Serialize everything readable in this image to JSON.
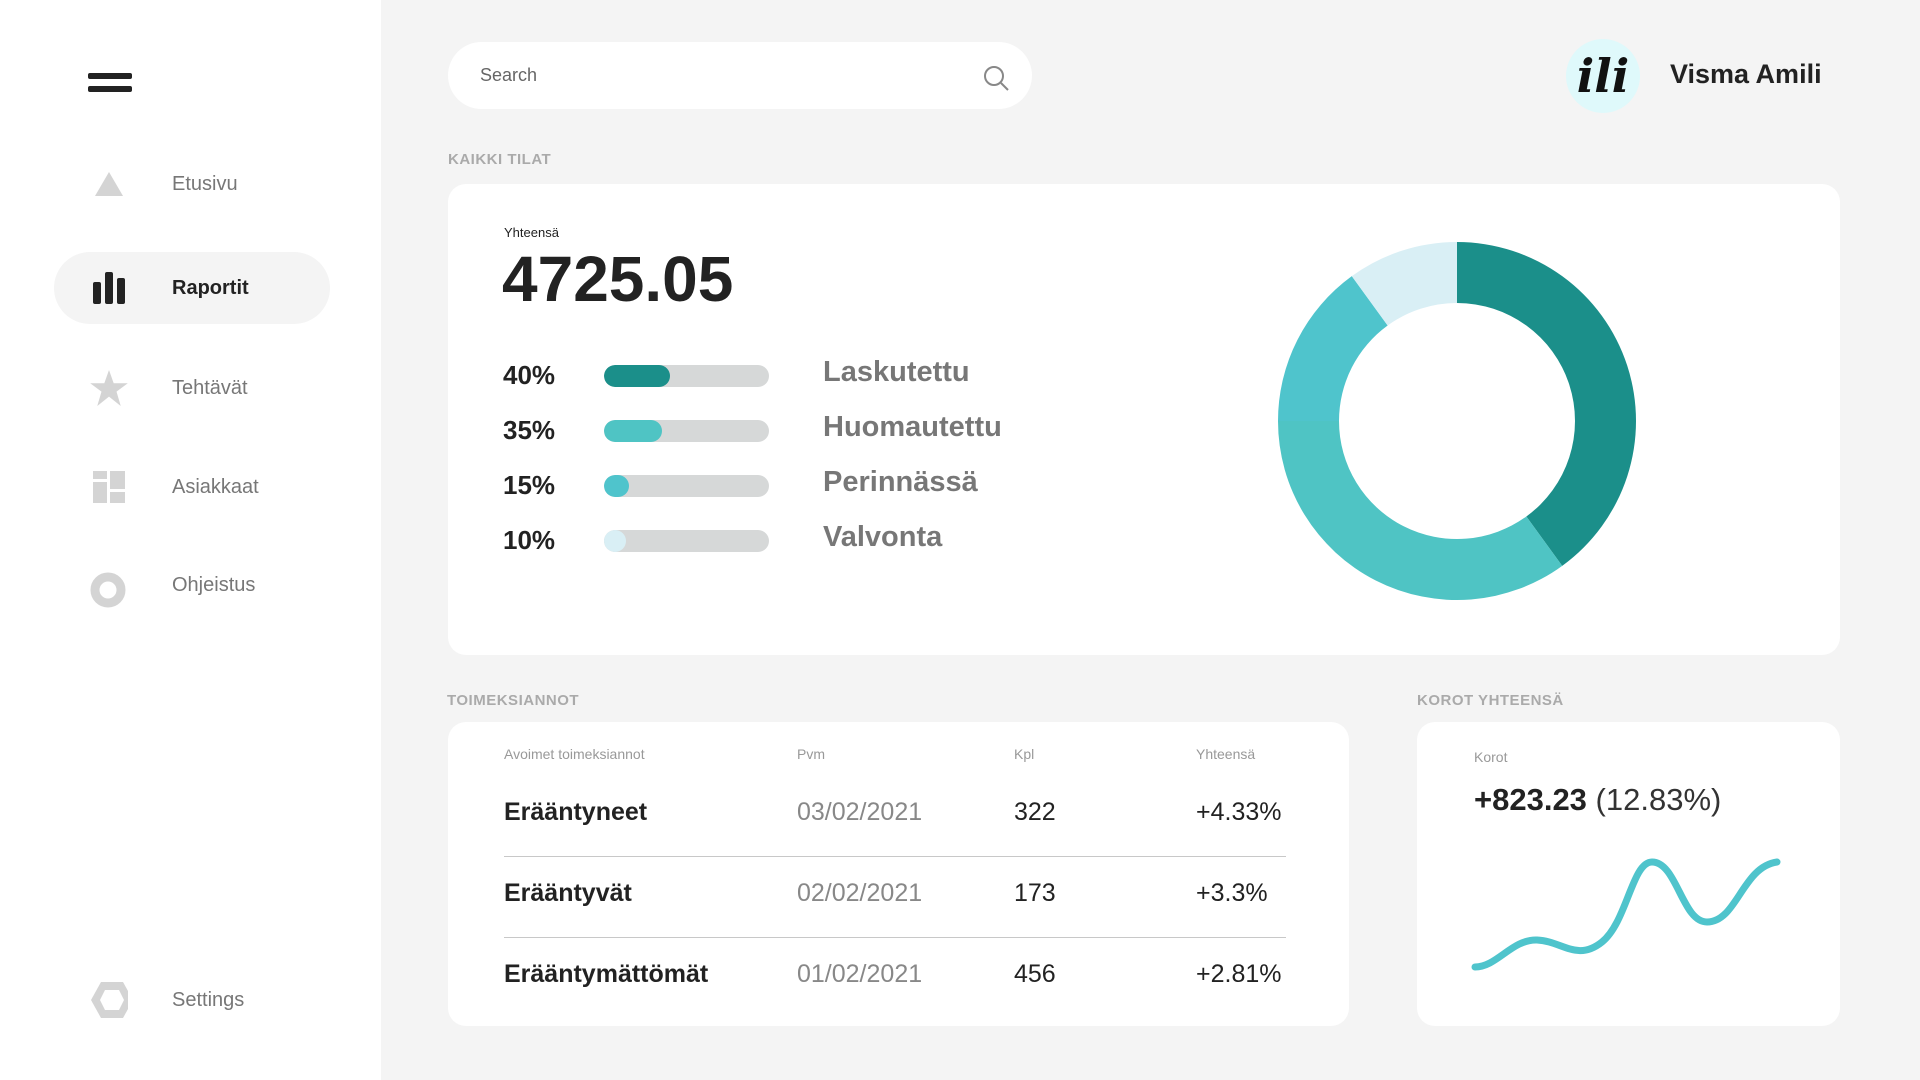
{
  "sidebar": {
    "items": [
      {
        "label": "Etusivu",
        "icon": "triangle-icon"
      },
      {
        "label": "Raportit",
        "icon": "bar-chart-icon",
        "active": true
      },
      {
        "label": "Tehtävät",
        "icon": "star-icon"
      },
      {
        "label": "Asiakkaat",
        "icon": "dashboard-icon"
      },
      {
        "label": "Ohjeistus",
        "icon": "ring-icon"
      }
    ],
    "settings": {
      "label": "Settings",
      "icon": "hexagon-icon"
    }
  },
  "search": {
    "placeholder": "Search"
  },
  "user": {
    "logo_text": "ili",
    "name": "Visma Amili"
  },
  "summary": {
    "section": "KAIKKI TILAT",
    "total_label": "Yhteensä",
    "total": "4725.05",
    "rows": [
      {
        "pct": "40%",
        "value": 40,
        "label": "Laskutettu",
        "color": "#1b8f8a"
      },
      {
        "pct": "35%",
        "value": 35,
        "label": "Huomautettu",
        "color": "#4fc4c4"
      },
      {
        "pct": "15%",
        "value": 15,
        "label": "Perinnässä",
        "color": "#4fc4cc"
      },
      {
        "pct": "10%",
        "value": 10,
        "label": "Valvonta",
        "color": "#d9eff5"
      }
    ]
  },
  "chart_data": {
    "type": "pie",
    "categories": [
      "Laskutettu",
      "Huomautettu",
      "Perinnässä",
      "Valvonta"
    ],
    "values": [
      40,
      35,
      15,
      10
    ],
    "colors": [
      "#1b8f8a",
      "#4fc4c4",
      "#4fc4cc",
      "#d9eff5"
    ]
  },
  "orders": {
    "section": "TOIMEKSIANNOT",
    "headers": [
      "Avoimet toimeksiannot",
      "Pvm",
      "Kpl",
      "Yhteensä"
    ],
    "rows": [
      {
        "name": "Erääntyneet",
        "date": "03/02/2021",
        "count": "322",
        "total": "+4.33%"
      },
      {
        "name": "Erääntyvät",
        "date": "02/02/2021",
        "count": "173",
        "total": "+3.3%"
      },
      {
        "name": "Erääntymättömät",
        "date": "01/02/2021",
        "count": "456",
        "total": "+2.81%"
      }
    ]
  },
  "interest": {
    "section": "KOROT YHTEENSÄ",
    "label": "Korot",
    "value": "+823.23",
    "pct": "(12.83%)"
  }
}
